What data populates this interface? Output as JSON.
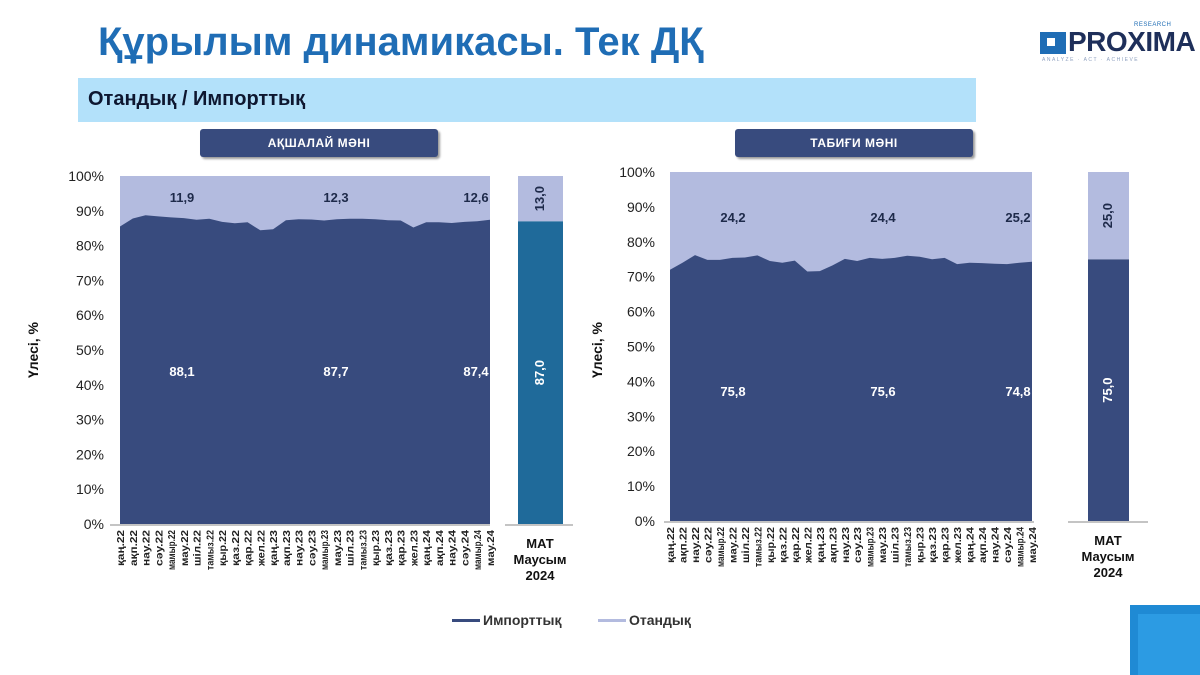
{
  "title": "Құрылым динамикасы. Тек ДҚ",
  "logo": {
    "text": "PROXIMA",
    "sup": "RESEARCH",
    "tagline": "ANALYZE · ACT · ACHIEVE"
  },
  "subtitle": "Отандық / Импорттық",
  "colors": {
    "import": "#384b7e",
    "domestic": "#b3bbdf",
    "mat_import": "#1f6a9a",
    "title": "#1f6db5"
  },
  "legend": [
    {
      "label": "Импорттық",
      "color": "#384b7e"
    },
    {
      "label": "Отандық",
      "color": "#b3bbdf"
    }
  ],
  "chart_data": [
    {
      "type": "area",
      "panel_title": "АҚШАЛАЙ МӘНІ",
      "ylabel": "Үлесі, %",
      "ylim": [
        0,
        100
      ],
      "yticks": [
        "0%",
        "10%",
        "20%",
        "30%",
        "40%",
        "50%",
        "60%",
        "70%",
        "80%",
        "90%",
        "100%"
      ],
      "categories": [
        "қаң.22",
        "ақп.22",
        "нау.22",
        "сәу.22",
        "мамыр.22",
        "мау.22",
        "шіл.22",
        "тамыз.22",
        "қыр.22",
        "қаз.22",
        "қар.22",
        "жел.22",
        "қаң.23",
        "ақп.23",
        "нау.23",
        "сәу.23",
        "мамыр.23",
        "мау.23",
        "шіл.23",
        "тамыз.23",
        "қыр.23",
        "қаз.23",
        "қар.23",
        "жел.23",
        "қаң.24",
        "ақп.24",
        "нау.24",
        "сәу.24",
        "мамыр.24",
        "мау.24"
      ],
      "series": [
        {
          "name": "Импорттық",
          "values": [
            85.5,
            87.8,
            88.7,
            88.4,
            88.1,
            87.9,
            87.4,
            87.7,
            86.8,
            86.4,
            86.7,
            84.4,
            84.7,
            87.3,
            87.6,
            87.5,
            87.2,
            87.6,
            87.7,
            87.7,
            87.6,
            87.3,
            87.2,
            85.2,
            86.7,
            86.7,
            86.5,
            86.8,
            87.0,
            87.4
          ]
        }
      ],
      "annotations": {
        "domestic": [
          "11,9",
          "12,3",
          "12,6"
        ],
        "import": [
          "88,1",
          "87,7",
          "87,4"
        ]
      },
      "mat": {
        "label": [
          "МАТ",
          "Маусым",
          "2024"
        ],
        "import": 87.0,
        "domestic": 13.0,
        "import_label": "87,0",
        "domestic_label": "13,0"
      }
    },
    {
      "type": "area",
      "panel_title": "ТАБИҒИ МӘНІ",
      "ylabel": "Үлесі, %",
      "ylim": [
        0,
        100
      ],
      "yticks": [
        "0%",
        "10%",
        "20%",
        "30%",
        "40%",
        "50%",
        "60%",
        "70%",
        "80%",
        "90%",
        "100%"
      ],
      "categories": [
        "қаң.22",
        "ақп.22",
        "нау.22",
        "сәу.22",
        "мамыр.22",
        "мау.22",
        "шіл.22",
        "тамыз.22",
        "қыр.22",
        "қаз.22",
        "қар.22",
        "жел.22",
        "қаң.23",
        "ақп.23",
        "нау.23",
        "сәу.23",
        "мамыр.23",
        "мау.23",
        "шіл.23",
        "тамыз.23",
        "қыр.23",
        "қаз.23",
        "қар.23",
        "жел.23",
        "қаң.24",
        "ақп.24",
        "нау.24",
        "сәу.24",
        "мамыр.24",
        "мау.24"
      ],
      "series": [
        {
          "name": "Импорттық",
          "values": [
            72.0,
            74.0,
            76.2,
            74.8,
            74.8,
            75.4,
            75.5,
            76.1,
            74.5,
            74.0,
            74.6,
            71.5,
            71.6,
            73.2,
            75.1,
            74.5,
            75.4,
            75.1,
            75.4,
            76.0,
            75.7,
            75.0,
            75.4,
            73.6,
            74.0,
            73.9,
            73.7,
            73.6,
            74.0,
            74.3
          ]
        }
      ],
      "annotations": {
        "domestic": [
          "24,2",
          "24,4",
          "25,2"
        ],
        "import": [
          "75,8",
          "75,6",
          "74,8"
        ]
      },
      "mat": {
        "label": [
          "МАТ",
          "Маусым",
          "2024"
        ],
        "import": 75.0,
        "domestic": 25.0,
        "import_label": "75,0",
        "domestic_label": "25,0"
      }
    }
  ]
}
